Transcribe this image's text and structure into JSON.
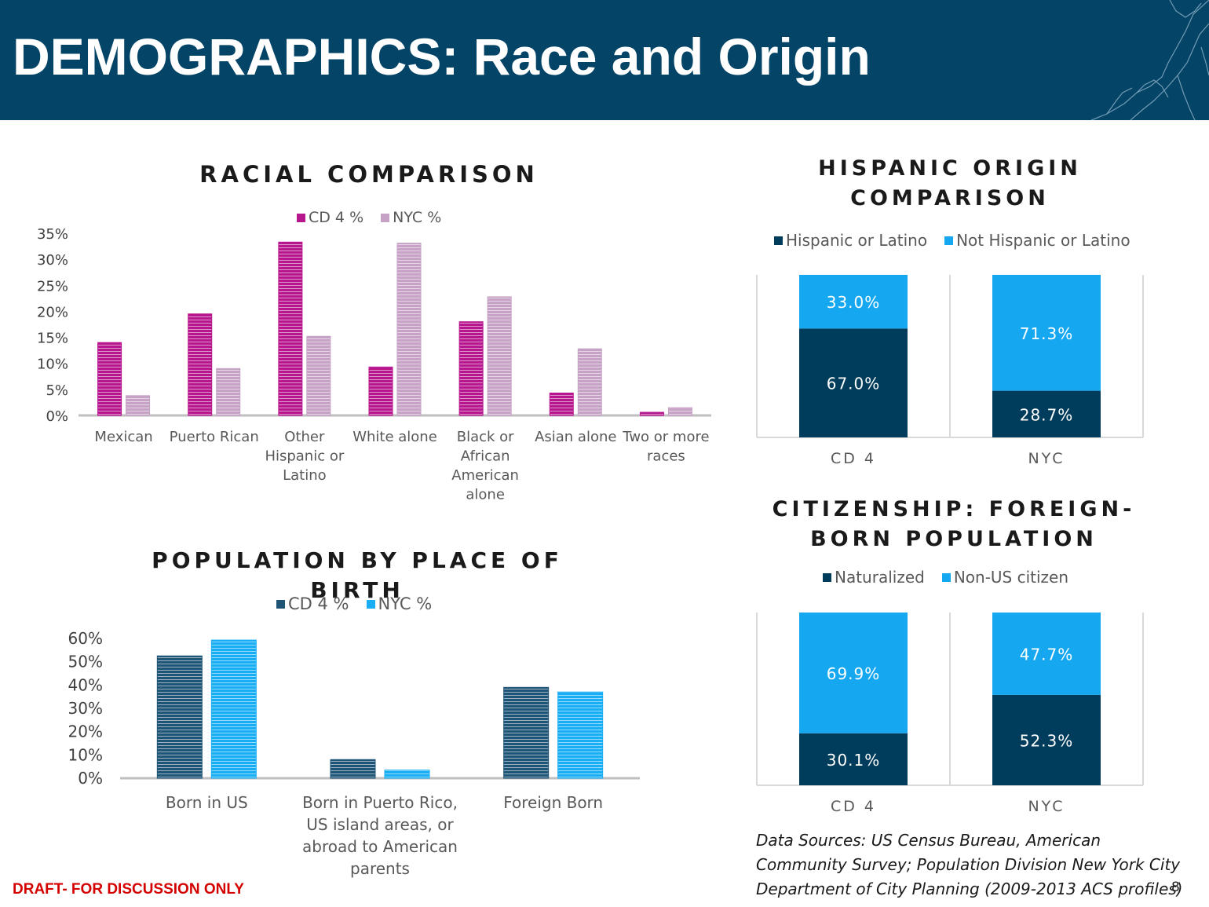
{
  "header": {
    "title": "DEMOGRAPHICS: Race and Origin"
  },
  "colors": {
    "header_bg": "#034467",
    "cd4_race": "#b8168f",
    "nyc_race": "#c6a2c6",
    "cd4_birth": "#1e5577",
    "nyc_birth": "#18aef5",
    "hispanic_dark": "#003d5c",
    "hispanic_light": "#15a8f0",
    "draft_red": "#d40000"
  },
  "charts": {
    "racial": {
      "title": "RACIAL COMPARISON",
      "legend": [
        "CD 4 %",
        "NYC %"
      ],
      "y_ticks": [
        "35%",
        "30%",
        "25%",
        "20%",
        "15%",
        "10%",
        "5%",
        "0%"
      ],
      "category_labels": [
        [
          "Mexican"
        ],
        [
          "Puerto Rican"
        ],
        [
          "Other",
          "Hispanic or",
          "Latino"
        ],
        [
          "White alone"
        ],
        [
          "Black or",
          "African",
          "American",
          "alone"
        ],
        [
          "Asian alone"
        ],
        [
          "Two or more",
          "races"
        ]
      ]
    },
    "birth": {
      "title": "POPULATION BY PLACE OF BIRTH",
      "legend": [
        "CD 4 %",
        "NYC %"
      ],
      "y_ticks": [
        "60%",
        "50%",
        "40%",
        "30%",
        "20%",
        "10%",
        "0%"
      ],
      "category_labels": [
        [
          "Born in US"
        ],
        [
          "Born in Puerto Rico,",
          "US island areas, or",
          "abroad to American",
          "parents"
        ],
        [
          "Foreign Born"
        ]
      ]
    },
    "hispanic": {
      "title_lines": [
        "HISPANIC ORIGIN",
        "COMPARISON"
      ],
      "legend": [
        "Hispanic or Latino",
        "Not Hispanic or Latino"
      ],
      "categories": [
        "CD  4",
        "NYC"
      ]
    },
    "citizenship": {
      "title_lines": [
        "CITIZENSHIP: FOREIGN-",
        "BORN POPULATION"
      ],
      "legend": [
        "Naturalized",
        "Non-US citizen"
      ],
      "categories": [
        "CD  4",
        "NYC"
      ]
    }
  },
  "chart_data": [
    {
      "type": "bar",
      "title": "RACIAL COMPARISON",
      "categories": [
        "Mexican",
        "Puerto Rican",
        "Other Hispanic or Latino",
        "White alone",
        "Black or African American alone",
        "Asian alone",
        "Two or more races"
      ],
      "series": [
        {
          "name": "CD 4 %",
          "values": [
            14,
            19.5,
            33.3,
            9.3,
            18,
            4.3,
            0.6
          ]
        },
        {
          "name": "NYC %",
          "values": [
            3.8,
            9,
            15.2,
            33.1,
            22.8,
            12.8,
            1.5
          ]
        }
      ],
      "ylim": [
        0,
        35
      ],
      "xlabel": "",
      "ylabel": "",
      "legend": "top"
    },
    {
      "type": "bar",
      "title": "POPULATION BY PLACE OF BIRTH",
      "categories": [
        "Born in US",
        "Born in Puerto Rico, US island areas, or abroad to American parents",
        "Foreign Born"
      ],
      "series": [
        {
          "name": "CD 4 %",
          "values": [
            52.5,
            8,
            39
          ]
        },
        {
          "name": "NYC %",
          "values": [
            59.3,
            3.5,
            37
          ]
        }
      ],
      "ylim": [
        0,
        60
      ],
      "xlabel": "",
      "ylabel": "",
      "legend": "top"
    },
    {
      "type": "bar",
      "stacked": true,
      "title": "HISPANIC ORIGIN COMPARISON",
      "categories": [
        "CD  4",
        "NYC"
      ],
      "series": [
        {
          "name": "Hispanic or Latino",
          "values": [
            67.0,
            28.7
          ],
          "labels": [
            "67.0%",
            "28.7%"
          ]
        },
        {
          "name": "Not Hispanic or Latino",
          "values": [
            33.0,
            71.3
          ],
          "labels": [
            "33.0%",
            "71.3%"
          ]
        }
      ],
      "legend": "top"
    },
    {
      "type": "bar",
      "stacked": true,
      "title": "CITIZENSHIP: FOREIGN-BORN POPULATION",
      "categories": [
        "CD  4",
        "NYC"
      ],
      "series": [
        {
          "name": "Naturalized",
          "values": [
            30.1,
            52.3
          ],
          "labels": [
            "30.1%",
            "52.3%"
          ]
        },
        {
          "name": "Non-US citizen",
          "values": [
            69.9,
            47.7
          ],
          "labels": [
            "69.9%",
            "47.7%"
          ]
        }
      ],
      "legend": "top"
    }
  ],
  "footer": {
    "draft": "DRAFT- FOR DISCUSSION ONLY",
    "sources": "Data Sources: US Census Bureau, American Community Survey; Population Division New York City Department of City Planning (2009-2013 ACS profiles)",
    "page_number": "8"
  }
}
